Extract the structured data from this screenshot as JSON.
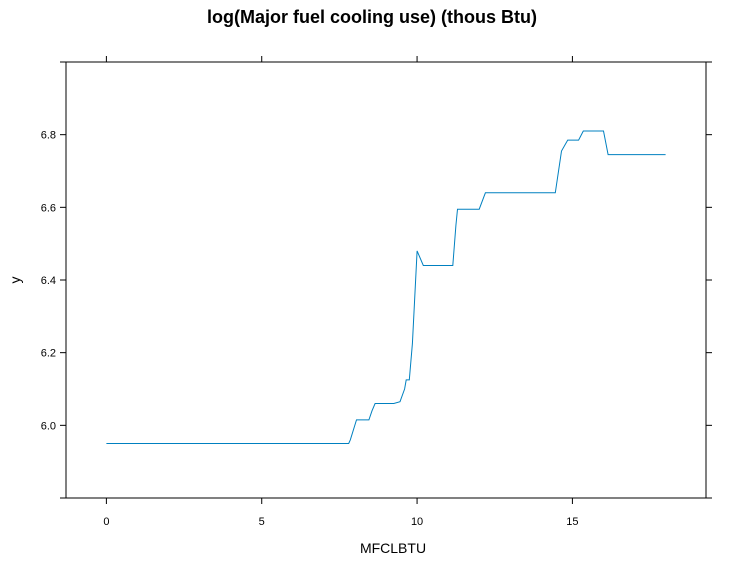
{
  "chart_data": {
    "type": "line",
    "title": "log(Major fuel cooling use) (thous Btu)",
    "xlabel": "MFCLBTU",
    "ylabel": "y",
    "xlim": [
      -1.3,
      19.3
    ],
    "ylim": [
      5.8,
      7.0
    ],
    "x_ticks": [
      0,
      5,
      10,
      15
    ],
    "y_ticks": [
      6.0,
      6.2,
      6.4,
      6.6,
      6.8
    ],
    "color": "#0080c0",
    "x": [
      0.0,
      7.8,
      7.85,
      8.05,
      8.45,
      8.55,
      8.65,
      9.25,
      9.45,
      9.6,
      9.65,
      9.75,
      9.85,
      10.0,
      10.2,
      11.15,
      11.25,
      11.3,
      12.0,
      12.2,
      14.45,
      14.65,
      14.85,
      15.2,
      15.35,
      16.0,
      16.15,
      18.0
    ],
    "y": [
      5.95,
      5.95,
      5.96,
      6.015,
      6.015,
      6.04,
      6.06,
      6.06,
      6.065,
      6.1,
      6.125,
      6.125,
      6.225,
      6.48,
      6.44,
      6.44,
      6.55,
      6.595,
      6.595,
      6.64,
      6.64,
      6.755,
      6.785,
      6.785,
      6.81,
      6.81,
      6.745,
      6.745
    ]
  }
}
